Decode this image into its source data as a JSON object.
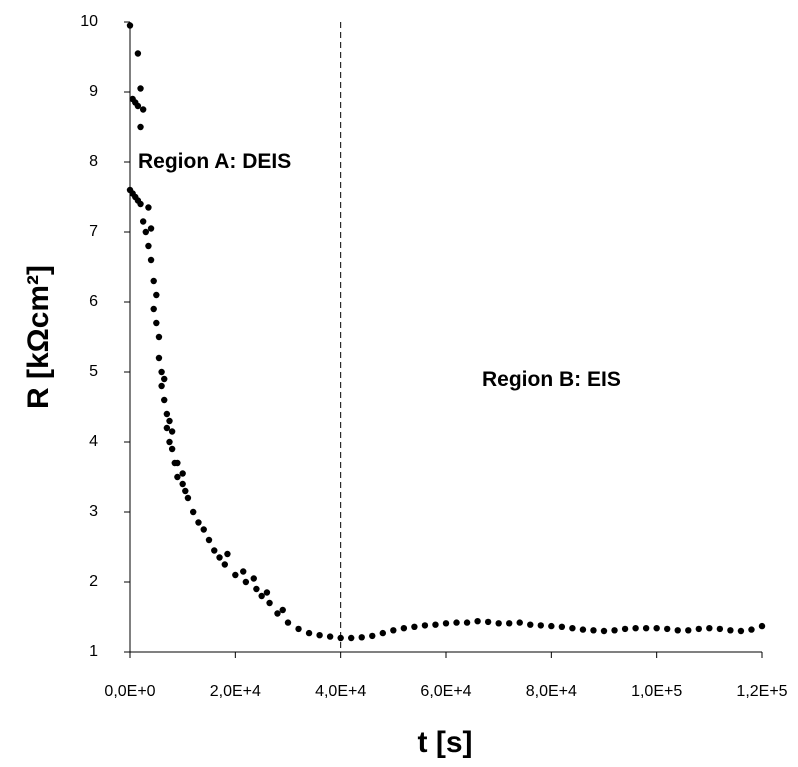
{
  "chart_data": {
    "type": "scatter",
    "x_label": "t [s]",
    "y_label": "R [kΩcm²]",
    "annotations": [
      "Region A: DEIS",
      "Region B: EIS"
    ],
    "reference_line_x": 40000,
    "color": "#000000",
    "xlim": [
      0,
      120000
    ],
    "ylim": [
      1,
      10
    ],
    "xticks": [
      {
        "value": 0,
        "label": "0,0E+0"
      },
      {
        "value": 20000,
        "label": "2,0E+4"
      },
      {
        "value": 40000,
        "label": "4,0E+4"
      },
      {
        "value": 60000,
        "label": "6,0E+4"
      },
      {
        "value": 80000,
        "label": "8,0E+4"
      },
      {
        "value": 100000,
        "label": "1,0E+5"
      },
      {
        "value": 120000,
        "label": "1,2E+5"
      }
    ],
    "yticks": [
      1,
      2,
      3,
      4,
      5,
      6,
      7,
      8,
      9,
      10
    ],
    "x": [
      0,
      1500,
      500,
      1000,
      1500,
      2000,
      2500,
      2000,
      0,
      500,
      1000,
      1500,
      2000,
      2500,
      3000,
      3500,
      3500,
      4000,
      4000,
      4500,
      4500,
      5000,
      5000,
      5500,
      5500,
      6000,
      6000,
      6500,
      6500,
      7000,
      7000,
      7500,
      7500,
      8000,
      8000,
      8500,
      9000,
      9000,
      10000,
      10000,
      10500,
      11000,
      12000,
      13000,
      14000,
      15000,
      16000,
      17000,
      18000,
      18500,
      20000,
      21500,
      22000,
      23500,
      24000,
      25000,
      26000,
      26500,
      28000,
      29000,
      30000,
      32000,
      34000,
      36000,
      38000,
      40000,
      42000,
      44000,
      46000,
      48000,
      50000,
      52000,
      54000,
      56000,
      58000,
      60000,
      62000,
      64000,
      66000,
      68000,
      70000,
      72000,
      74000,
      76000,
      78000,
      80000,
      82000,
      84000,
      86000,
      88000,
      90000,
      92000,
      94000,
      96000,
      98000,
      100000,
      102000,
      104000,
      106000,
      108000,
      110000,
      112000,
      114000,
      116000,
      118000,
      120000
    ],
    "values": [
      9.95,
      9.55,
      8.9,
      8.85,
      8.8,
      9.05,
      8.75,
      8.5,
      7.6,
      7.55,
      7.5,
      7.45,
      7.4,
      7.15,
      7.0,
      6.8,
      7.35,
      6.6,
      7.05,
      6.3,
      5.9,
      6.1,
      5.7,
      5.5,
      5.2,
      5.0,
      4.8,
      4.6,
      4.9,
      4.4,
      4.2,
      4.3,
      4.0,
      3.9,
      4.15,
      3.7,
      3.5,
      3.7,
      3.4,
      3.55,
      3.3,
      3.2,
      3.0,
      2.85,
      2.75,
      2.6,
      2.45,
      2.35,
      2.25,
      2.4,
      2.1,
      2.15,
      2.0,
      2.05,
      1.9,
      1.8,
      1.85,
      1.7,
      1.55,
      1.6,
      1.42,
      1.33,
      1.27,
      1.24,
      1.22,
      1.2,
      1.2,
      1.21,
      1.23,
      1.27,
      1.31,
      1.34,
      1.36,
      1.38,
      1.39,
      1.41,
      1.42,
      1.42,
      1.44,
      1.43,
      1.41,
      1.41,
      1.42,
      1.39,
      1.38,
      1.37,
      1.36,
      1.34,
      1.32,
      1.31,
      1.3,
      1.31,
      1.33,
      1.34,
      1.34,
      1.34,
      1.33,
      1.31,
      1.31,
      1.33,
      1.34,
      1.33,
      1.31,
      1.3,
      1.32,
      1.37
    ]
  }
}
